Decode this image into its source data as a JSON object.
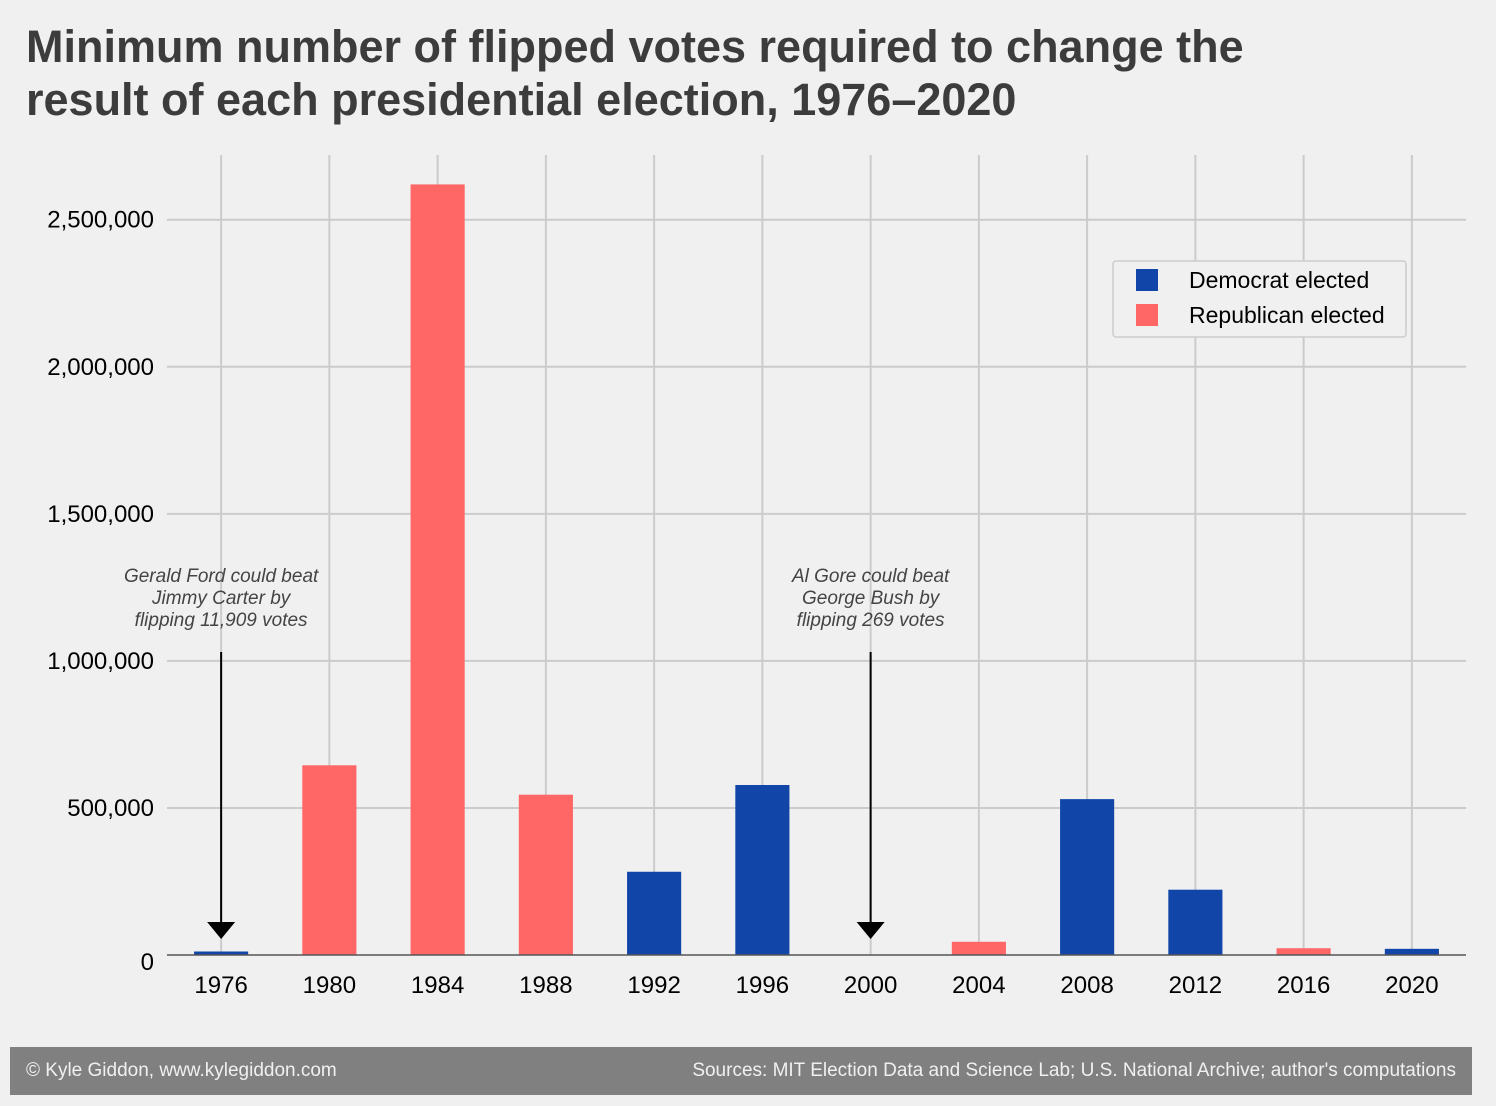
{
  "title_line1": "Minimum number of flipped votes required to change the",
  "title_line2": "result of each presidential election, 1976–2020",
  "footer": {
    "left": "© Kyle Giddon, www.kylegiddon.com",
    "right": "Sources: MIT Election Data and Science Lab; U.S. National Archive; author's computations"
  },
  "annotations": [
    {
      "target": "1976",
      "lines": [
        "Gerald Ford could beat",
        "Jimmy Carter by",
        "flipping 11,909 votes"
      ]
    },
    {
      "target": "2000",
      "lines": [
        "Al Gore could beat",
        "George Bush by",
        "flipping 269 votes"
      ]
    }
  ],
  "chart_data": {
    "type": "bar",
    "title": "Minimum number of flipped votes required to change the result of each presidential election, 1976–2020",
    "categories": [
      "1976",
      "1980",
      "1984",
      "1988",
      "1992",
      "1996",
      "2000",
      "2004",
      "2008",
      "2012",
      "2016",
      "2020"
    ],
    "values": [
      11909,
      645000,
      2620000,
      545000,
      283000,
      578000,
      269,
      45000,
      530000,
      222000,
      23000,
      21000
    ],
    "party": [
      "Democrat",
      "Republican",
      "Republican",
      "Republican",
      "Democrat",
      "Democrat",
      "Republican",
      "Republican",
      "Democrat",
      "Democrat",
      "Republican",
      "Democrat"
    ],
    "yticks": [
      0,
      500000,
      1000000,
      1500000,
      2000000,
      2500000
    ],
    "ytick_labels": [
      "0",
      "500,000",
      "1,000,000",
      "1,500,000",
      "2,000,000",
      "2,500,000"
    ],
    "ylim": [
      0,
      2720000
    ],
    "colors": {
      "Democrat": "#1146a8",
      "Republican": "#ff6666"
    },
    "legend": [
      {
        "label": "Democrat elected",
        "key": "Democrat"
      },
      {
        "label": "Republican elected",
        "key": "Republican"
      }
    ],
    "legend_position": "top-right",
    "grid": true
  }
}
